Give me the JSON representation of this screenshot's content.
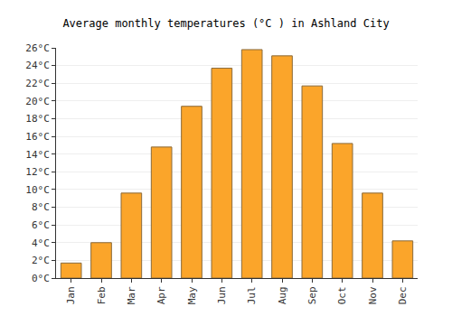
{
  "chart_data": {
    "type": "bar",
    "title": "Average monthly temperatures (°C ) in Ashland City",
    "categories": [
      "Jan",
      "Feb",
      "Mar",
      "Apr",
      "May",
      "Jun",
      "Jul",
      "Aug",
      "Sep",
      "Oct",
      "Nov",
      "Dec"
    ],
    "values": [
      1.7,
      4.0,
      9.6,
      14.8,
      19.4,
      23.7,
      25.8,
      25.1,
      21.7,
      15.2,
      9.6,
      4.2
    ],
    "color": "#fba52a",
    "ylim": [
      0,
      26
    ],
    "yticks": [
      {
        "value": 0,
        "label": "0°C"
      },
      {
        "value": 2,
        "label": "2°C"
      },
      {
        "value": 4,
        "label": "4°C"
      },
      {
        "value": 6,
        "label": "6°C"
      },
      {
        "value": 8,
        "label": "8°C"
      },
      {
        "value": 10,
        "label": "10°C"
      },
      {
        "value": 12,
        "label": "12°C"
      },
      {
        "value": 14,
        "label": "14°C"
      },
      {
        "value": 16,
        "label": "16°C"
      },
      {
        "value": 18,
        "label": "18°C"
      },
      {
        "value": 20,
        "label": "20°C"
      },
      {
        "value": 22,
        "label": "22°C"
      },
      {
        "value": 24,
        "label": "24°C"
      },
      {
        "value": 26,
        "label": "26°C"
      }
    ],
    "grid": true
  }
}
